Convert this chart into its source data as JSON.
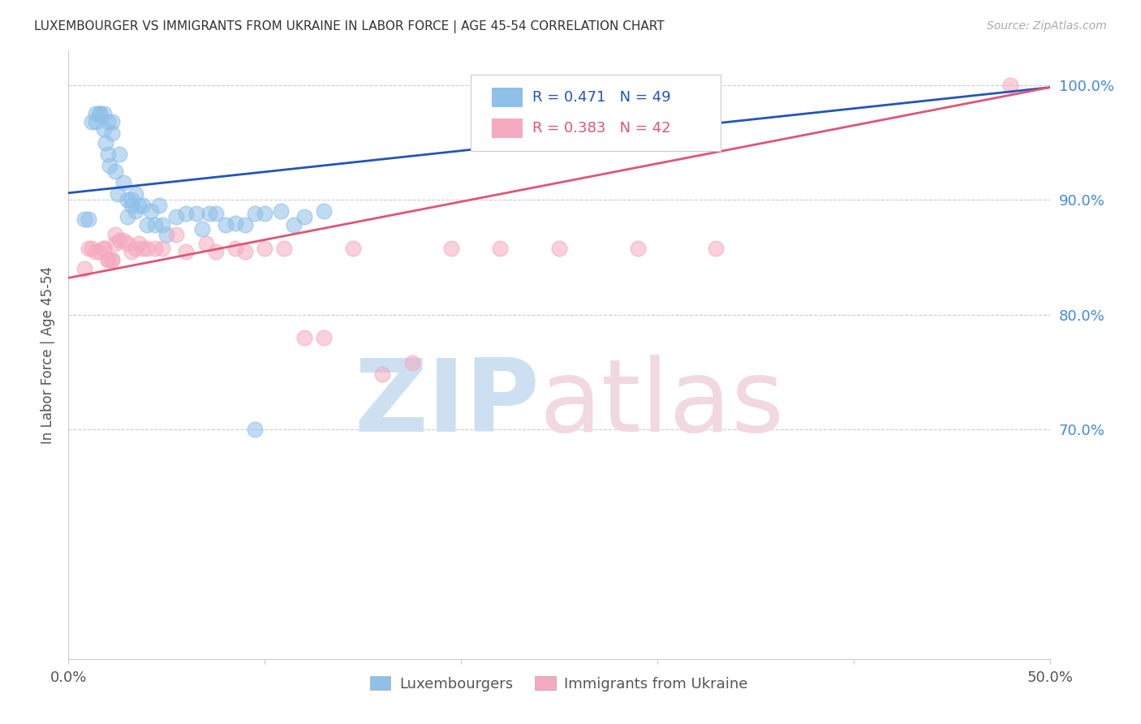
{
  "title": "LUXEMBOURGER VS IMMIGRANTS FROM UKRAINE IN LABOR FORCE | AGE 45-54 CORRELATION CHART",
  "source": "Source: ZipAtlas.com",
  "ylabel": "In Labor Force | Age 45-54",
  "xlim": [
    0.0,
    0.5
  ],
  "ylim": [
    0.5,
    1.03
  ],
  "legend_lux": "Luxembourgers",
  "legend_ukr": "Immigrants from Ukraine",
  "R_lux": 0.471,
  "N_lux": 49,
  "R_ukr": 0.383,
  "N_ukr": 42,
  "color_lux": "#8ec0e8",
  "color_ukr": "#f5aabf",
  "line_color_lux": "#2255bb",
  "line_color_ukr": "#e05575",
  "background_color": "#ffffff",
  "grid_color": "#cccccc",
  "ytick_color": "#4488dd",
  "lux_x": [
    0.008,
    0.01,
    0.012,
    0.014,
    0.014,
    0.016,
    0.016,
    0.018,
    0.018,
    0.019,
    0.02,
    0.02,
    0.021,
    0.022,
    0.022,
    0.024,
    0.025,
    0.026,
    0.028,
    0.03,
    0.03,
    0.032,
    0.032,
    0.034,
    0.034,
    0.036,
    0.038,
    0.04,
    0.042,
    0.044,
    0.046,
    0.048,
    0.05,
    0.055,
    0.06,
    0.065,
    0.068,
    0.072,
    0.075,
    0.08,
    0.085,
    0.09,
    0.095,
    0.1,
    0.108,
    0.115,
    0.12,
    0.13,
    0.095
  ],
  "lux_y": [
    0.883,
    0.883,
    0.968,
    0.968,
    0.975,
    0.975,
    0.975,
    0.975,
    0.962,
    0.95,
    0.968,
    0.94,
    0.93,
    0.968,
    0.958,
    0.925,
    0.905,
    0.94,
    0.915,
    0.9,
    0.885,
    0.9,
    0.895,
    0.905,
    0.89,
    0.895,
    0.895,
    0.878,
    0.89,
    0.878,
    0.895,
    0.878,
    0.87,
    0.885,
    0.888,
    0.888,
    0.875,
    0.888,
    0.888,
    0.878,
    0.88,
    0.878,
    0.888,
    0.888,
    0.89,
    0.878,
    0.885,
    0.89,
    0.7
  ],
  "ukr_x": [
    0.008,
    0.01,
    0.012,
    0.014,
    0.016,
    0.018,
    0.018,
    0.02,
    0.02,
    0.022,
    0.022,
    0.024,
    0.024,
    0.026,
    0.028,
    0.03,
    0.032,
    0.034,
    0.036,
    0.038,
    0.04,
    0.044,
    0.048,
    0.055,
    0.06,
    0.07,
    0.075,
    0.085,
    0.09,
    0.1,
    0.11,
    0.12,
    0.13,
    0.145,
    0.16,
    0.175,
    0.195,
    0.22,
    0.25,
    0.29,
    0.33,
    0.48
  ],
  "ukr_y": [
    0.84,
    0.858,
    0.858,
    0.855,
    0.855,
    0.858,
    0.858,
    0.848,
    0.848,
    0.848,
    0.848,
    0.87,
    0.862,
    0.865,
    0.865,
    0.862,
    0.855,
    0.858,
    0.862,
    0.858,
    0.858,
    0.858,
    0.858,
    0.87,
    0.855,
    0.862,
    0.855,
    0.858,
    0.855,
    0.858,
    0.858,
    0.78,
    0.78,
    0.858,
    0.748,
    0.758,
    0.858,
    0.858,
    0.858,
    0.858,
    0.858,
    1.0
  ],
  "blue_line_x0": 0.0,
  "blue_line_y0": 0.906,
  "blue_line_x1": 0.5,
  "blue_line_y1": 0.998,
  "pink_line_x0": 0.0,
  "pink_line_y0": 0.832,
  "pink_line_x1": 0.5,
  "pink_line_y1": 0.998
}
